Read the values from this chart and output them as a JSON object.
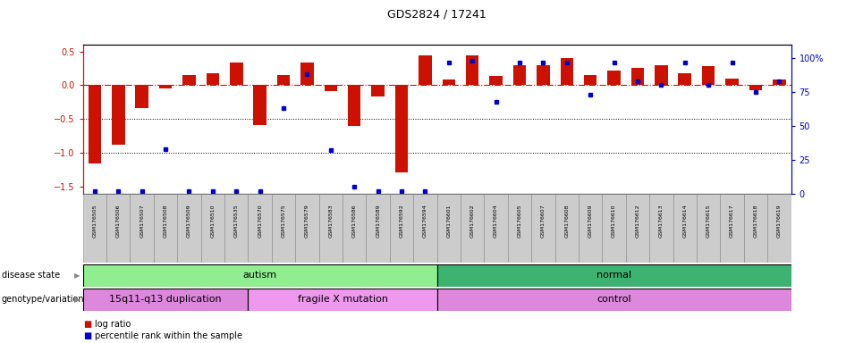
{
  "title": "GDS2824 / 17241",
  "samples": [
    "GSM176505",
    "GSM176506",
    "GSM176507",
    "GSM176508",
    "GSM176509",
    "GSM176510",
    "GSM176535",
    "GSM176570",
    "GSM176575",
    "GSM176579",
    "GSM176583",
    "GSM176586",
    "GSM176589",
    "GSM176592",
    "GSM176594",
    "GSM176601",
    "GSM176602",
    "GSM176604",
    "GSM176605",
    "GSM176607",
    "GSM176608",
    "GSM176609",
    "GSM176610",
    "GSM176612",
    "GSM176613",
    "GSM176614",
    "GSM176615",
    "GSM176617",
    "GSM176618",
    "GSM176619"
  ],
  "log_ratio": [
    -1.15,
    -0.88,
    -0.33,
    -0.05,
    0.15,
    0.18,
    0.33,
    -0.58,
    0.15,
    0.33,
    -0.08,
    -0.6,
    -0.17,
    -1.28,
    0.44,
    0.09,
    0.44,
    0.14,
    0.3,
    0.3,
    0.4,
    0.15,
    0.22,
    0.25,
    0.3,
    0.18,
    0.28,
    0.1,
    -0.07,
    0.09
  ],
  "percentile_pct": [
    2,
    2,
    2,
    33,
    2,
    2,
    2,
    2,
    63,
    88,
    32,
    5,
    2,
    2,
    2,
    97,
    98,
    68,
    97,
    97,
    97,
    73,
    97,
    83,
    80,
    97,
    80,
    97,
    75,
    83
  ],
  "disease_state_groups": [
    {
      "label": "autism",
      "start": 0,
      "end": 14,
      "color": "#90EE90"
    },
    {
      "label": "normal",
      "start": 15,
      "end": 29,
      "color": "#3CB371"
    }
  ],
  "genotype_groups": [
    {
      "label": "15q11-q13 duplication",
      "start": 0,
      "end": 6,
      "color": "#DD88DD"
    },
    {
      "label": "fragile X mutation",
      "start": 7,
      "end": 14,
      "color": "#EE99EE"
    },
    {
      "label": "control",
      "start": 15,
      "end": 29,
      "color": "#DD88DD"
    }
  ],
  "bar_color": "#CC1100",
  "dot_color": "#0000CC",
  "ylim_left": [
    -1.6,
    0.6
  ],
  "ylim_right": [
    0,
    110
  ],
  "yticks_left": [
    0.5,
    0.0,
    -0.5,
    -1.0,
    -1.5
  ],
  "yticks_right": [
    0,
    25,
    50,
    75,
    100
  ],
  "hlines": [
    -0.5,
    -1.0
  ],
  "legend_log_ratio": "log ratio",
  "legend_percentile": "percentile rank within the sample",
  "label_col_color": "#CCCCCC",
  "label_col_border": "#888888"
}
